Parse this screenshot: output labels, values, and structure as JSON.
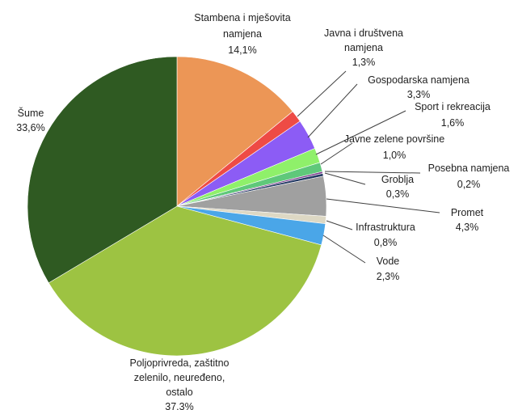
{
  "chart_data": {
    "type": "pie",
    "title": "",
    "slices": [
      {
        "lines": [
          "Stambena  i mješovita",
          "namjena",
          "14,1%"
        ],
        "value": 14.1,
        "color": "#ec9656"
      },
      {
        "lines": [
          "Javna i društvena",
          "namjena",
          "1,3%"
        ],
        "value": 1.3,
        "color": "#ee4b45"
      },
      {
        "lines": [
          "Gospodarska namjena",
          "3,3%"
        ],
        "value": 3.3,
        "color": "#8c5cf5"
      },
      {
        "lines": [
          "Sport i rekreacija",
          "1,6%"
        ],
        "value": 1.6,
        "color": "#8ff06a"
      },
      {
        "lines": [
          "Javne zelene  površine",
          "1,0%"
        ],
        "value": 1.0,
        "color": "#5fc87a"
      },
      {
        "lines": [
          "Posebna namjena",
          "0,2%"
        ],
        "value": 0.2,
        "color": "#7a3a8c"
      },
      {
        "lines": [
          "Groblja",
          "0,3%"
        ],
        "value": 0.3,
        "color": "#243a64"
      },
      {
        "lines": [
          "Promet",
          "4,3%"
        ],
        "value": 4.3,
        "color": "#a0a0a0"
      },
      {
        "lines": [
          "Infrastruktura",
          "0,8%"
        ],
        "value": 0.8,
        "color": "#ddd8c4"
      },
      {
        "lines": [
          "Vode",
          "2,3%"
        ],
        "value": 2.3,
        "color": "#4aa6e8"
      },
      {
        "lines": [
          "Poljoprivreda, zaštitno",
          "zelenilo, neuređeno,",
          "ostalo",
          "37.3%"
        ],
        "value": 37.3,
        "color": "#9dc342"
      },
      {
        "lines": [
          "Šume",
          "33,6%"
        ],
        "value": 33.6,
        "color": "#2f5a22"
      }
    ]
  }
}
